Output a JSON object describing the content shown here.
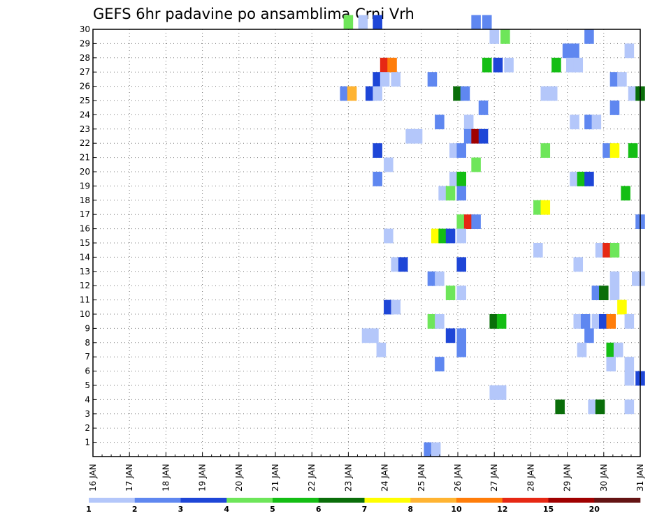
{
  "chart_data": {
    "type": "heatmap",
    "title": "GEFS 6hr padavine po ansamblima Crni Vrh",
    "xlabel": "",
    "ylabel": "",
    "x_ticks": [
      "16 JAN",
      "17 JAN",
      "18 JAN",
      "19 JAN",
      "20 JAN",
      "21 JAN",
      "22 JAN",
      "23 JAN",
      "24 JAN",
      "25 JAN",
      "26 JAN",
      "27 JAN",
      "28 JAN",
      "29 JAN",
      "30 JAN",
      "31 JAN"
    ],
    "x_range": [
      0,
      60
    ],
    "y_ticks": [
      1,
      2,
      3,
      4,
      5,
      6,
      7,
      8,
      9,
      10,
      11,
      12,
      13,
      14,
      15,
      16,
      17,
      18,
      19,
      20,
      21,
      22,
      23,
      24,
      25,
      26,
      27,
      28,
      29,
      30
    ],
    "y_range": [
      0,
      30
    ],
    "grid": true,
    "legend": {
      "placement": "bottom",
      "colors": [
        "#b4c7fa",
        "#5f87f0",
        "#1e46d7",
        "#6ee65a",
        "#14be14",
        "#0a6e0a",
        "#ffff00",
        "#ffb432",
        "#ff7d0a",
        "#e62814",
        "#a00000",
        "#641414"
      ],
      "labels": [
        "1",
        "2",
        "3",
        "4",
        "5",
        "6",
        "7",
        "8",
        "10",
        "12",
        "15",
        "20"
      ]
    },
    "cells": [
      {
        "t": 23.0,
        "m": 30,
        "c": 4
      },
      {
        "t": 23.4,
        "m": 30,
        "c": 1
      },
      {
        "t": 23.8,
        "m": 30,
        "c": 3
      },
      {
        "t": 26.5,
        "m": 30,
        "c": 2
      },
      {
        "t": 26.8,
        "m": 30,
        "c": 2
      },
      {
        "t": 27.0,
        "m": 29,
        "c": 1
      },
      {
        "t": 27.3,
        "m": 29,
        "c": 4
      },
      {
        "t": 29.6,
        "m": 29,
        "c": 2
      },
      {
        "t": 29.0,
        "m": 28,
        "c": 2
      },
      {
        "t": 29.2,
        "m": 28,
        "c": 2
      },
      {
        "t": 30.7,
        "m": 28,
        "c": 1
      },
      {
        "t": 24.0,
        "m": 27,
        "c": 10
      },
      {
        "t": 24.2,
        "m": 27,
        "c": 9
      },
      {
        "t": 26.8,
        "m": 27,
        "c": 5
      },
      {
        "t": 27.1,
        "m": 27,
        "c": 3
      },
      {
        "t": 27.4,
        "m": 27,
        "c": 1
      },
      {
        "t": 28.7,
        "m": 27,
        "c": 5
      },
      {
        "t": 29.1,
        "m": 27,
        "c": 1
      },
      {
        "t": 29.3,
        "m": 27,
        "c": 1
      },
      {
        "t": 23.8,
        "m": 26,
        "c": 3
      },
      {
        "t": 24.0,
        "m": 26,
        "c": 1
      },
      {
        "t": 24.3,
        "m": 26,
        "c": 1
      },
      {
        "t": 25.3,
        "m": 26,
        "c": 2
      },
      {
        "t": 30.3,
        "m": 26,
        "c": 2
      },
      {
        "t": 30.5,
        "m": 26,
        "c": 1
      },
      {
        "t": 22.9,
        "m": 25,
        "c": 2
      },
      {
        "t": 23.1,
        "m": 25,
        "c": 8
      },
      {
        "t": 23.6,
        "m": 25,
        "c": 3
      },
      {
        "t": 23.8,
        "m": 25,
        "c": 1
      },
      {
        "t": 26.0,
        "m": 25,
        "c": 6
      },
      {
        "t": 26.2,
        "m": 25,
        "c": 2
      },
      {
        "t": 28.4,
        "m": 25,
        "c": 1
      },
      {
        "t": 28.6,
        "m": 25,
        "c": 1
      },
      {
        "t": 30.8,
        "m": 25,
        "c": 1
      },
      {
        "t": 31.0,
        "m": 25,
        "c": 6
      },
      {
        "t": 26.7,
        "m": 24,
        "c": 2
      },
      {
        "t": 30.3,
        "m": 24,
        "c": 2
      },
      {
        "t": 25.5,
        "m": 23,
        "c": 2
      },
      {
        "t": 26.3,
        "m": 23,
        "c": 1
      },
      {
        "t": 29.2,
        "m": 23,
        "c": 1
      },
      {
        "t": 29.6,
        "m": 23,
        "c": 2
      },
      {
        "t": 29.8,
        "m": 23,
        "c": 1
      },
      {
        "t": 24.7,
        "m": 22,
        "c": 1
      },
      {
        "t": 24.9,
        "m": 22,
        "c": 1
      },
      {
        "t": 26.3,
        "m": 22,
        "c": 2
      },
      {
        "t": 26.5,
        "m": 22,
        "c": 11
      },
      {
        "t": 26.7,
        "m": 22,
        "c": 3
      },
      {
        "t": 23.8,
        "m": 21,
        "c": 3
      },
      {
        "t": 25.9,
        "m": 21,
        "c": 1
      },
      {
        "t": 26.1,
        "m": 21,
        "c": 2
      },
      {
        "t": 28.4,
        "m": 21,
        "c": 4
      },
      {
        "t": 30.1,
        "m": 21,
        "c": 2
      },
      {
        "t": 30.3,
        "m": 21,
        "c": 7
      },
      {
        "t": 30.8,
        "m": 21,
        "c": 5
      },
      {
        "t": 24.1,
        "m": 20,
        "c": 1
      },
      {
        "t": 26.5,
        "m": 20,
        "c": 4
      },
      {
        "t": 23.8,
        "m": 19,
        "c": 2
      },
      {
        "t": 25.9,
        "m": 19,
        "c": 1
      },
      {
        "t": 26.1,
        "m": 19,
        "c": 5
      },
      {
        "t": 29.2,
        "m": 19,
        "c": 1
      },
      {
        "t": 29.4,
        "m": 19,
        "c": 5
      },
      {
        "t": 29.6,
        "m": 19,
        "c": 3
      },
      {
        "t": 25.6,
        "m": 18,
        "c": 1
      },
      {
        "t": 25.8,
        "m": 18,
        "c": 4
      },
      {
        "t": 26.1,
        "m": 18,
        "c": 2
      },
      {
        "t": 30.6,
        "m": 18,
        "c": 5
      },
      {
        "t": 28.2,
        "m": 17,
        "c": 4
      },
      {
        "t": 28.4,
        "m": 17,
        "c": 7
      },
      {
        "t": 26.1,
        "m": 16,
        "c": 4
      },
      {
        "t": 26.3,
        "m": 16,
        "c": 10
      },
      {
        "t": 26.5,
        "m": 16,
        "c": 2
      },
      {
        "t": 31.0,
        "m": 16,
        "c": 2
      },
      {
        "t": 24.1,
        "m": 15,
        "c": 1
      },
      {
        "t": 25.4,
        "m": 15,
        "c": 7
      },
      {
        "t": 25.6,
        "m": 15,
        "c": 5
      },
      {
        "t": 25.8,
        "m": 15,
        "c": 3
      },
      {
        "t": 26.1,
        "m": 15,
        "c": 1
      },
      {
        "t": 28.2,
        "m": 14,
        "c": 1
      },
      {
        "t": 29.9,
        "m": 14,
        "c": 1
      },
      {
        "t": 30.1,
        "m": 14,
        "c": 10
      },
      {
        "t": 30.3,
        "m": 14,
        "c": 4
      },
      {
        "t": 24.3,
        "m": 13,
        "c": 1
      },
      {
        "t": 24.5,
        "m": 13,
        "c": 3
      },
      {
        "t": 26.1,
        "m": 13,
        "c": 3
      },
      {
        "t": 29.3,
        "m": 13,
        "c": 1
      },
      {
        "t": 25.3,
        "m": 12,
        "c": 2
      },
      {
        "t": 25.5,
        "m": 12,
        "c": 1
      },
      {
        "t": 30.3,
        "m": 12,
        "c": 1
      },
      {
        "t": 30.9,
        "m": 12,
        "c": 1
      },
      {
        "t": 31.0,
        "m": 12,
        "c": 1
      },
      {
        "t": 25.8,
        "m": 11,
        "c": 4
      },
      {
        "t": 26.1,
        "m": 11,
        "c": 1
      },
      {
        "t": 29.8,
        "m": 11,
        "c": 2
      },
      {
        "t": 30.0,
        "m": 11,
        "c": 6
      },
      {
        "t": 30.3,
        "m": 11,
        "c": 1
      },
      {
        "t": 24.1,
        "m": 10,
        "c": 3
      },
      {
        "t": 24.3,
        "m": 10,
        "c": 1
      },
      {
        "t": 30.5,
        "m": 10,
        "c": 7
      },
      {
        "t": 25.3,
        "m": 9,
        "c": 4
      },
      {
        "t": 25.5,
        "m": 9,
        "c": 1
      },
      {
        "t": 27.0,
        "m": 9,
        "c": 6
      },
      {
        "t": 27.2,
        "m": 9,
        "c": 5
      },
      {
        "t": 29.3,
        "m": 9,
        "c": 1
      },
      {
        "t": 29.5,
        "m": 9,
        "c": 2
      },
      {
        "t": 29.8,
        "m": 9,
        "c": 1
      },
      {
        "t": 30.0,
        "m": 9,
        "c": 3
      },
      {
        "t": 30.2,
        "m": 9,
        "c": 9
      },
      {
        "t": 30.7,
        "m": 9,
        "c": 1
      },
      {
        "t": 23.5,
        "m": 8,
        "c": 1
      },
      {
        "t": 23.7,
        "m": 8,
        "c": 1
      },
      {
        "t": 25.8,
        "m": 8,
        "c": 3
      },
      {
        "t": 26.1,
        "m": 8,
        "c": 2
      },
      {
        "t": 29.6,
        "m": 8,
        "c": 2
      },
      {
        "t": 23.9,
        "m": 7,
        "c": 1
      },
      {
        "t": 26.1,
        "m": 7,
        "c": 2
      },
      {
        "t": 29.4,
        "m": 7,
        "c": 1
      },
      {
        "t": 30.2,
        "m": 7,
        "c": 5
      },
      {
        "t": 30.4,
        "m": 7,
        "c": 1
      },
      {
        "t": 25.5,
        "m": 6,
        "c": 2
      },
      {
        "t": 30.2,
        "m": 6,
        "c": 1
      },
      {
        "t": 30.7,
        "m": 6,
        "c": 1
      },
      {
        "t": 30.7,
        "m": 5,
        "c": 1
      },
      {
        "t": 31.0,
        "m": 5,
        "c": 3
      },
      {
        "t": 27.0,
        "m": 4,
        "c": 1
      },
      {
        "t": 27.2,
        "m": 4,
        "c": 1
      },
      {
        "t": 28.8,
        "m": 3,
        "c": 6
      },
      {
        "t": 29.7,
        "m": 3,
        "c": 1
      },
      {
        "t": 29.9,
        "m": 3,
        "c": 6
      },
      {
        "t": 30.7,
        "m": 3,
        "c": 1
      },
      {
        "t": 25.2,
        "m": 0,
        "c": 2
      },
      {
        "t": 25.4,
        "m": 0,
        "c": 1
      }
    ]
  }
}
